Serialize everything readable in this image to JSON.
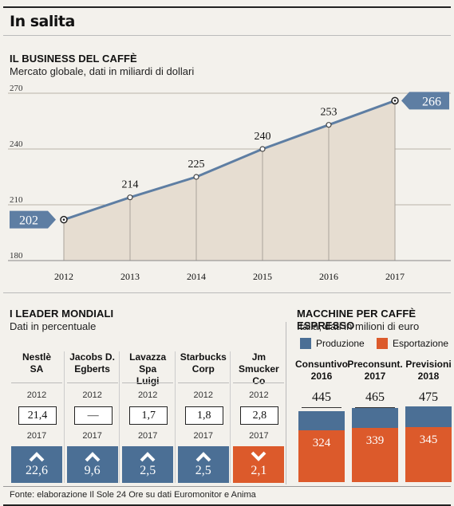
{
  "page_title": "In salita",
  "colors": {
    "line": "#5e7ea3",
    "area": "#e6ddd1",
    "production": "#4b6f95",
    "export": "#dc5a2b",
    "callout": "#5e7ea3"
  },
  "chart_data": [
    {
      "type": "area",
      "title": "IL BUSINESS DEL CAFFÈ",
      "subtitle": "Mercato globale, dati in miliardi di dollari",
      "x": [
        "2012",
        "2013",
        "2014",
        "2015",
        "2016",
        "2017"
      ],
      "values": [
        202,
        214,
        225,
        240,
        253,
        266
      ],
      "yticks": [
        "270",
        "240",
        "210",
        "180"
      ],
      "ylim": [
        180,
        270
      ],
      "grid": true
    },
    {
      "type": "table",
      "title": "I LEADER MONDIALI",
      "subtitle": "Dati in percentuale",
      "row_labels": [
        "2012",
        "2017"
      ],
      "companies": [
        {
          "name": "Nestlè SA",
          "y2012": "21,4",
          "y2017": "22,6",
          "trend": "up"
        },
        {
          "name": "Jacobs D. Egberts",
          "y2012": "—",
          "y2017": "9,6",
          "trend": "up"
        },
        {
          "name": "Lavazza Spa Luigi",
          "y2012": "1,7",
          "y2017": "2,5",
          "trend": "up"
        },
        {
          "name": "Starbucks Corp",
          "y2012": "1,8",
          "y2017": "2,5",
          "trend": "up"
        },
        {
          "name": "Jm Smucker Co",
          "y2012": "2,8",
          "y2017": "2,1",
          "trend": "down"
        }
      ]
    },
    {
      "type": "bar",
      "title": "MACCHINE PER CAFFÈ ESPRESSO",
      "subtitle": "Italia, dati in milioni di euro",
      "legend": [
        "Produzione",
        "Esportazione"
      ],
      "categories": [
        "Consuntivo 2016",
        "Preconsunt. 2017",
        "Previsioni 2018"
      ],
      "totals": [
        445,
        465,
        475
      ],
      "series": [
        {
          "name": "Esportazione",
          "values": [
            324,
            339,
            345
          ]
        }
      ]
    }
  ],
  "footer": "Fonte: elaborazione Il Sole 24 Ore su dati Euromonitor e Anima"
}
